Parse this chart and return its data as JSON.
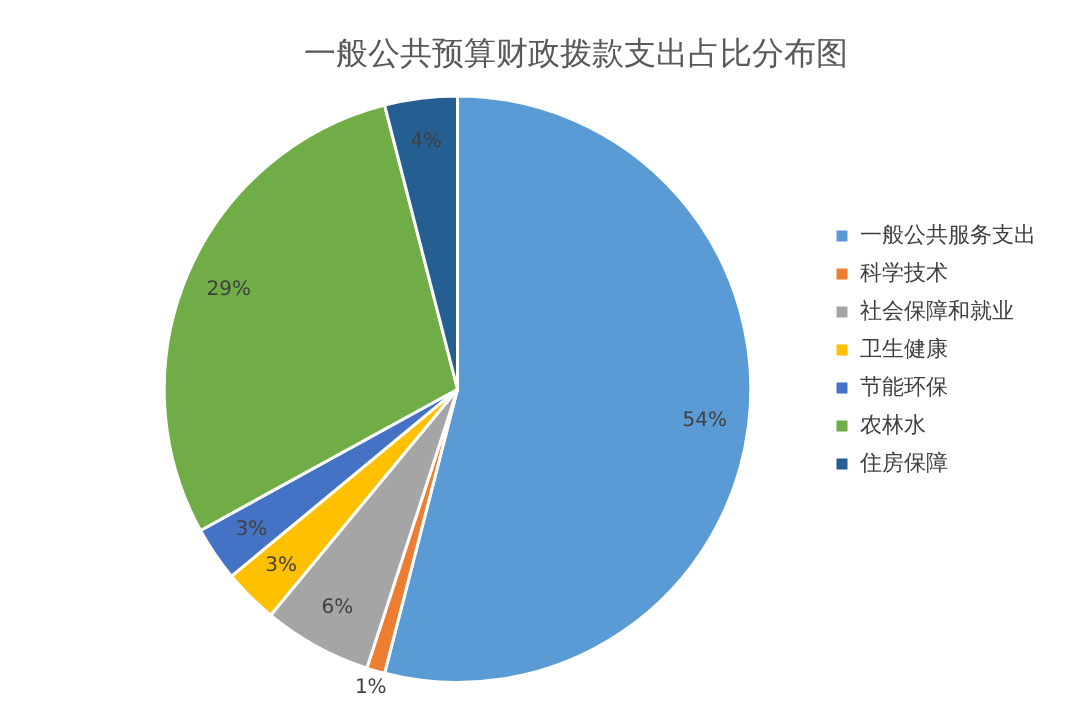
{
  "chart_data": {
    "type": "pie",
    "title": "一般公共预算财政拨款支出占比分布图",
    "categories": [
      "一般公共服务支出",
      "科学技术",
      "社会保障和就业",
      "卫生健康",
      "节能环保",
      "农林水",
      "住房保障"
    ],
    "values": [
      54,
      1,
      6,
      3,
      3,
      29,
      4
    ],
    "value_labels": [
      "54%",
      "1%",
      "6%",
      "3%",
      "3%",
      "29%",
      "4%"
    ],
    "colors": [
      "#5b9bd5",
      "#ed7d31",
      "#a5a5a5",
      "#ffc000",
      "#4472c4",
      "#70ad47",
      "#255e91"
    ],
    "legend": "right"
  }
}
